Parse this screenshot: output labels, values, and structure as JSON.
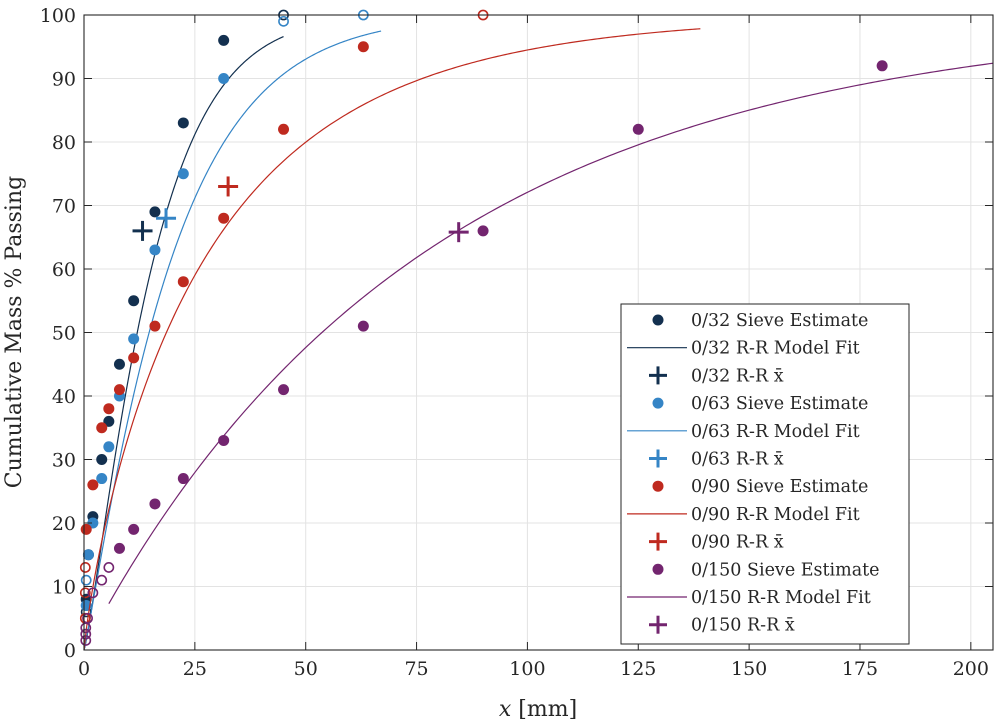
{
  "chart_data": {
    "type": "scatter",
    "title": "",
    "xlabel": "[mm]",
    "xlabel_var": "x",
    "ylabel": "Cumulative Mass % Passing",
    "xlim": [
      0,
      205
    ],
    "ylim": [
      0,
      100
    ],
    "xticks": [
      0,
      25,
      50,
      75,
      100,
      125,
      150,
      175,
      200
    ],
    "yticks": [
      0,
      10,
      20,
      30,
      40,
      50,
      60,
      70,
      80,
      90,
      100
    ],
    "grid": true,
    "legend_position": "bottom-right",
    "series": [
      {
        "name": "0/32",
        "color": "#13304f",
        "sieve_label": "0/32 Sieve Estimate",
        "fit_label": "0/32 R-R Model Fit",
        "mean_label": "0/32 R-R x̄",
        "sieve_points": [
          [
            0.5,
            8
          ],
          [
            1,
            15
          ],
          [
            2,
            21
          ],
          [
            4,
            30
          ],
          [
            5.6,
            36
          ],
          [
            8,
            45
          ],
          [
            11.2,
            55
          ],
          [
            16,
            69
          ],
          [
            22.4,
            83
          ],
          [
            31.5,
            96
          ]
        ],
        "open_points": [
          [
            45,
            100
          ],
          [
            0.5,
            6
          ]
        ],
        "fit_params": {
          "lambda": 16.3,
          "k": 1.2,
          "x_end": 45
        },
        "mean": [
          13.2,
          66
        ]
      },
      {
        "name": "0/63",
        "color": "#3585c6",
        "sieve_label": "0/63 Sieve Estimate",
        "fit_label": "0/63 R-R Model Fit",
        "mean_label": "0/63 R-R x̄",
        "sieve_points": [
          [
            0.5,
            7
          ],
          [
            1,
            15
          ],
          [
            2,
            20
          ],
          [
            4,
            27
          ],
          [
            5.6,
            32
          ],
          [
            8,
            40
          ],
          [
            11.2,
            49
          ],
          [
            16,
            63
          ],
          [
            22.4,
            75
          ],
          [
            31.5,
            90
          ]
        ],
        "open_points": [
          [
            45,
            99
          ],
          [
            63,
            100
          ],
          [
            0.5,
            11
          ]
        ],
        "fit_params": {
          "lambda": 20.5,
          "k": 1.1,
          "x_end": 67
        },
        "mean": [
          18.5,
          68
        ]
      },
      {
        "name": "0/90",
        "color": "#bf2a1f",
        "sieve_label": "0/90 Sieve Estimate",
        "fit_label": "0/90 R-R Model Fit",
        "mean_label": "0/90 R-R x̄",
        "sieve_points": [
          [
            0.5,
            19
          ],
          [
            2,
            26
          ],
          [
            4,
            35
          ],
          [
            5.6,
            38
          ],
          [
            8,
            41
          ],
          [
            11.2,
            46
          ],
          [
            16,
            51
          ],
          [
            22.4,
            58
          ],
          [
            31.5,
            68
          ],
          [
            45,
            82
          ],
          [
            63,
            95
          ]
        ],
        "open_points": [
          [
            90,
            100
          ],
          [
            0.3,
            13
          ],
          [
            0.3,
            9
          ],
          [
            0.3,
            5
          ]
        ],
        "fit_params": {
          "lambda": 28.6,
          "k": 0.85,
          "x_end": 139
        },
        "mean": [
          32.5,
          73
        ]
      },
      {
        "name": "0/150",
        "color": "#73256f",
        "sieve_label": "0/150 Sieve Estimate",
        "fit_label": "0/150 R-R Model Fit",
        "mean_label": "0/150 R-R x̄",
        "sieve_points": [
          [
            8,
            16
          ],
          [
            11.2,
            19
          ],
          [
            16,
            23
          ],
          [
            22.4,
            27
          ],
          [
            31.5,
            33
          ],
          [
            45,
            41
          ],
          [
            63,
            51
          ],
          [
            90,
            66
          ],
          [
            125,
            82
          ],
          [
            180,
            92
          ]
        ],
        "open_points": [
          [
            0.4,
            1.5
          ],
          [
            0.4,
            2.5
          ],
          [
            0.4,
            3.5
          ],
          [
            0.8,
            5
          ],
          [
            2,
            9
          ],
          [
            4,
            11
          ],
          [
            5.6,
            13
          ]
        ],
        "fit_params": {
          "lambda": 78,
          "k": 0.98,
          "x_start": 5.6,
          "x_end": 205
        },
        "mean": [
          84.5,
          65.8
        ]
      }
    ]
  }
}
